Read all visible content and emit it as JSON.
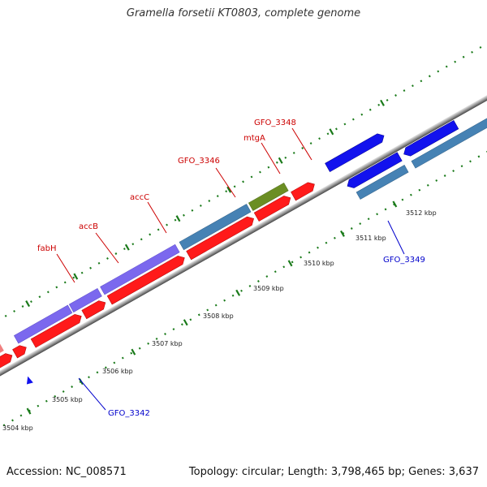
{
  "title": "Gramella forsetii KT0803, complete genome",
  "footer": {
    "accession": "Accession: NC_008571",
    "summary": "Topology: circular; Length: 3,798,465 bp; Genes: 3,637"
  },
  "colors": {
    "forward_cds": "#ff0000",
    "reverse_cds": "#0000ee",
    "gene_highlight_blue": "#4682b4",
    "gene_highlight_purple": "#7b68ee",
    "gene_highlight_olive": "#6b8e23",
    "tick_green": "#006400",
    "backbone_gray": "#777777"
  },
  "tick_labels": [
    "3504 kbp",
    "3505 kbp",
    "3506 kbp",
    "3507 kbp",
    "3508 kbp",
    "3509 kbp",
    "3510 kbp",
    "3511 kbp",
    "3512 kbp"
  ],
  "gene_labels": {
    "fabH": "fabH",
    "accB": "accB",
    "accC": "accC",
    "gfo3346": "GFO_3346",
    "mtgA": "mtgA",
    "gfo3348": "GFO_3348",
    "gfo3349": "GFO_3349",
    "gfo3342": "GFO_3342"
  }
}
